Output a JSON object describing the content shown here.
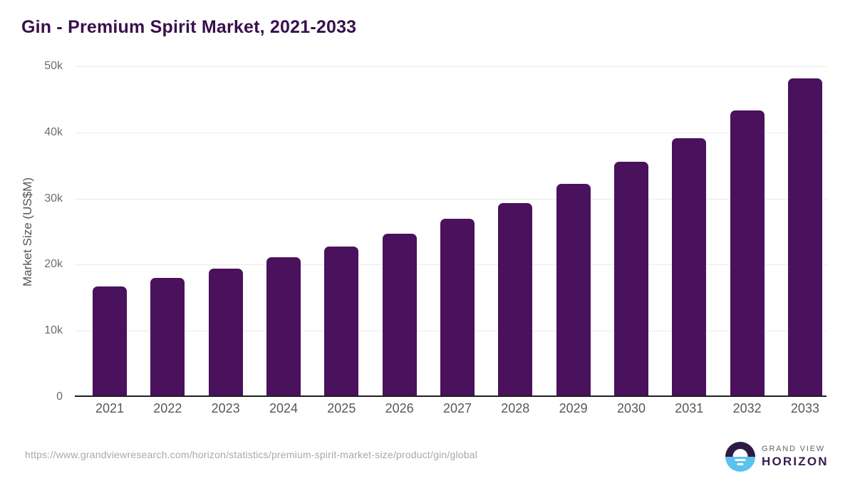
{
  "chart_data": {
    "type": "bar",
    "title": "Gin - Premium Spirit Market, 2021-2033",
    "categories": [
      "2021",
      "2022",
      "2023",
      "2024",
      "2025",
      "2026",
      "2027",
      "2028",
      "2029",
      "2030",
      "2031",
      "2032",
      "2033"
    ],
    "values": [
      16500,
      17800,
      19200,
      20900,
      22500,
      24500,
      26700,
      29100,
      32000,
      35300,
      38900,
      43100,
      47900
    ],
    "xlabel": "",
    "ylabel": "Market Size (US$M)",
    "ylim": [
      0,
      50000
    ],
    "yticks": [
      {
        "value": 0,
        "label": "0"
      },
      {
        "value": 10000,
        "label": "10k"
      },
      {
        "value": 20000,
        "label": "20k"
      },
      {
        "value": 30000,
        "label": "30k"
      },
      {
        "value": 40000,
        "label": "40k"
      },
      {
        "value": 50000,
        "label": "50k"
      }
    ],
    "grid": "horizontal",
    "legend": "none",
    "bar_color": "#4a115c"
  },
  "colors": {
    "title_text": "#38104d",
    "bar": "#4a115c",
    "gridline": "#eaeaea",
    "baseline": "#1f1f1f",
    "axis_tick_text": "#6e6e6e",
    "url_text": "#a8a8a8",
    "logo_purple": "#2f1a45",
    "logo_blue": "#5bc2ee"
  },
  "footer": {
    "source_url": "https://www.grandviewresearch.com/horizon/statistics/premium-spirit-market-size/product/gin/global",
    "logo": {
      "line1": "GRAND VIEW",
      "line2": "HORIZON"
    }
  }
}
